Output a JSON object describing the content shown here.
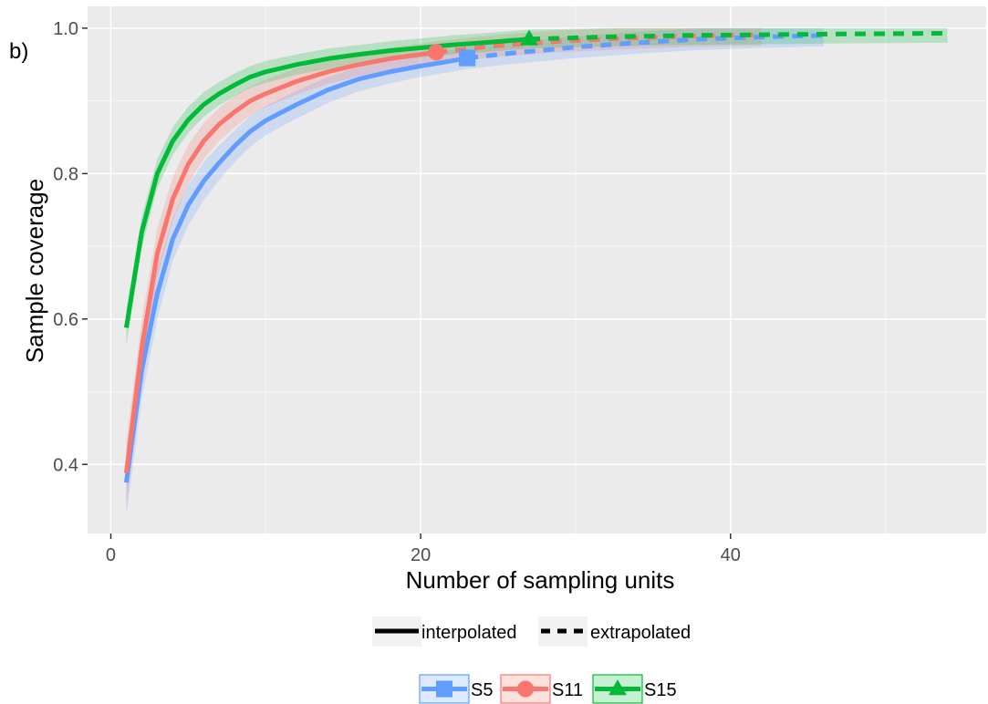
{
  "panel_label": "b)",
  "chart_data": {
    "type": "line",
    "title": "",
    "xlabel": "Number of sampling units",
    "ylabel": "Sample coverage",
    "xlim": [
      -1.5,
      56.5
    ],
    "ylim": [
      0.305,
      1.03
    ],
    "x_ticks": [
      0,
      20,
      40
    ],
    "x_tick_labels": [
      "0",
      "20",
      "40"
    ],
    "y_ticks": [
      0.4,
      0.6,
      0.8,
      1.0
    ],
    "y_tick_labels": [
      "0.4",
      "0.6",
      "0.8",
      "1.0"
    ],
    "grid": true,
    "legend_position": "bottom",
    "method_legend": {
      "items": [
        {
          "label": "interpolated",
          "linetype": "solid"
        },
        {
          "label": "extrapolated",
          "linetype": "dashed"
        }
      ]
    },
    "series": [
      {
        "name": "S5",
        "color": "#619CFF",
        "marker": "square",
        "observed": {
          "x": 23,
          "y": 0.959
        },
        "interpolated": {
          "x": [
            1,
            2,
            3,
            4,
            5,
            6,
            7,
            8,
            9,
            10,
            12,
            14,
            16,
            18,
            20,
            22,
            23
          ],
          "y": [
            0.375,
            0.53,
            0.635,
            0.71,
            0.757,
            0.79,
            0.815,
            0.838,
            0.858,
            0.873,
            0.895,
            0.915,
            0.93,
            0.94,
            0.948,
            0.955,
            0.959
          ]
        },
        "extrapolated": {
          "x": [
            23,
            26,
            30,
            34,
            38,
            42,
            46
          ],
          "y": [
            0.959,
            0.966,
            0.974,
            0.98,
            0.985,
            0.988,
            0.99
          ]
        },
        "ci_width": [
          0.045,
          0.04,
          0.035,
          0.03,
          0.028,
          0.026,
          0.024,
          0.022,
          0.021,
          0.02,
          0.019,
          0.018,
          0.017,
          0.016,
          0.015,
          0.015,
          0.015
        ]
      },
      {
        "name": "S11",
        "color": "#F8766D",
        "marker": "circle",
        "observed": {
          "x": 21,
          "y": 0.967
        },
        "interpolated": {
          "x": [
            1,
            2,
            3,
            4,
            5,
            6,
            7,
            8,
            9,
            10,
            12,
            14,
            16,
            18,
            20,
            21
          ],
          "y": [
            0.388,
            0.56,
            0.69,
            0.765,
            0.813,
            0.845,
            0.868,
            0.885,
            0.9,
            0.91,
            0.927,
            0.94,
            0.95,
            0.958,
            0.964,
            0.967
          ]
        },
        "extrapolated": {
          "x": [
            21,
            25,
            29,
            33,
            37,
            42
          ],
          "y": [
            0.967,
            0.976,
            0.982,
            0.986,
            0.989,
            0.991
          ]
        },
        "ci_width": [
          0.045,
          0.04,
          0.035,
          0.03,
          0.027,
          0.025,
          0.023,
          0.021,
          0.02,
          0.019,
          0.018,
          0.017,
          0.016,
          0.015,
          0.015,
          0.015
        ]
      },
      {
        "name": "S15",
        "color": "#00BA38",
        "marker": "triangle",
        "observed": {
          "x": 27,
          "y": 0.985
        },
        "interpolated": {
          "x": [
            1,
            2,
            3,
            4,
            5,
            6,
            7,
            8,
            9,
            10,
            12,
            14,
            16,
            18,
            20,
            22,
            24,
            27
          ],
          "y": [
            0.588,
            0.72,
            0.8,
            0.845,
            0.874,
            0.895,
            0.91,
            0.922,
            0.933,
            0.94,
            0.95,
            0.958,
            0.964,
            0.969,
            0.973,
            0.977,
            0.98,
            0.985
          ]
        },
        "extrapolated": {
          "x": [
            27,
            32,
            37,
            42,
            47,
            54
          ],
          "y": [
            0.985,
            0.988,
            0.99,
            0.991,
            0.992,
            0.993
          ]
        },
        "ci_width": [
          0.025,
          0.022,
          0.02,
          0.019,
          0.018,
          0.017,
          0.016,
          0.016,
          0.015,
          0.015,
          0.014,
          0.014,
          0.013,
          0.013,
          0.013,
          0.013,
          0.013,
          0.013
        ]
      }
    ]
  }
}
